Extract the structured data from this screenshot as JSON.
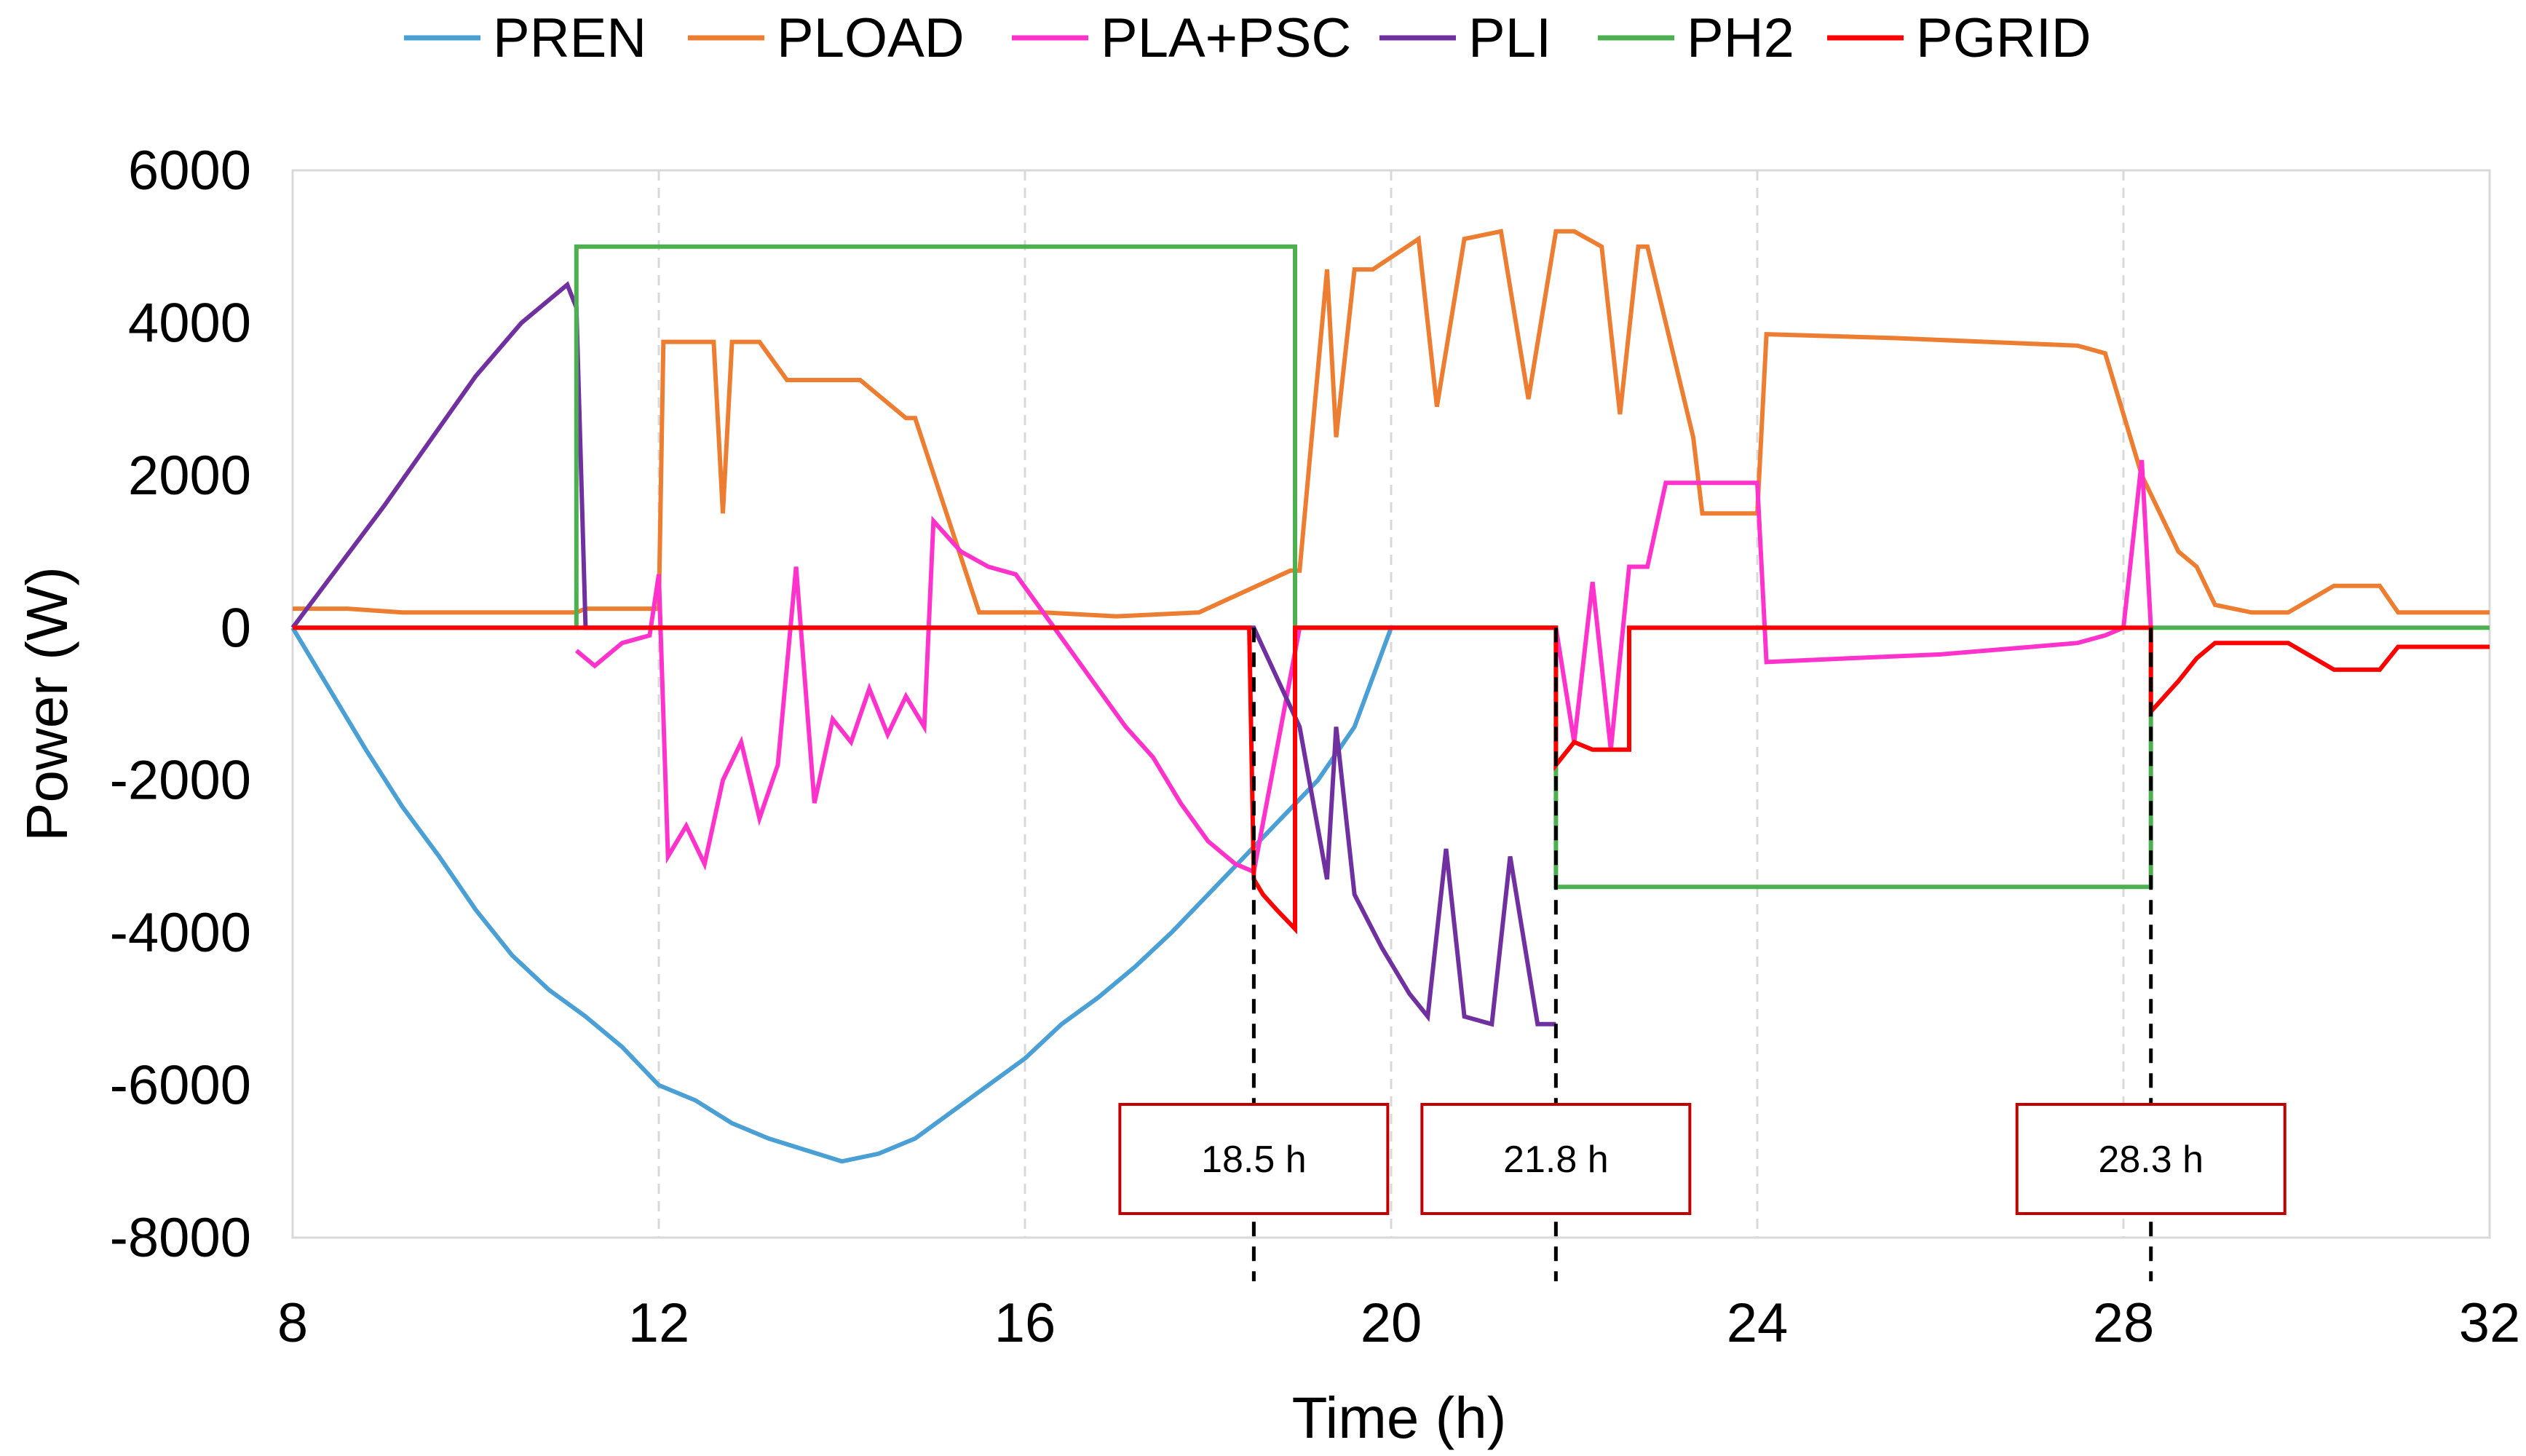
{
  "chart_data": {
    "type": "line",
    "xlabel": "Time (h)",
    "ylabel": "Power (W)",
    "xlim": [
      8,
      32
    ],
    "ylim": [
      -8000,
      6000
    ],
    "xticks": [
      8,
      12,
      16,
      20,
      24,
      28,
      32
    ],
    "yticks": [
      6000,
      4000,
      2000,
      0,
      -2000,
      -4000,
      -6000,
      -8000
    ],
    "tick_labels_x": [
      "8",
      "12",
      "16",
      "20",
      "24",
      "28",
      "32"
    ],
    "tick_labels_y": [
      "6000",
      "4000",
      "2000",
      "0",
      "-2000",
      "-4000",
      "-6000",
      "-8000"
    ],
    "grid": "vertical dashed",
    "legend_position": "top",
    "series": [
      {
        "name": "PREN",
        "color": "#4a9fd5",
        "x": [
          8,
          8.4,
          8.8,
          9.2,
          9.6,
          10,
          10.4,
          10.8,
          11.2,
          11.6,
          12,
          12.4,
          12.8,
          13.2,
          13.6,
          14,
          14.4,
          14.8,
          15.2,
          15.6,
          16,
          16.4,
          16.8,
          17.2,
          17.6,
          18,
          18.4,
          18.8,
          19.2,
          19.6,
          20
        ],
        "y": [
          0,
          -800,
          -1600,
          -2350,
          -3000,
          -3700,
          -4300,
          -4750,
          -5100,
          -5500,
          -6000,
          -6200,
          -6500,
          -6700,
          -6850,
          -7000,
          -6900,
          -6700,
          -6350,
          -6000,
          -5650,
          -5200,
          -4850,
          -4450,
          -4000,
          -3500,
          -3000,
          -2500,
          -2000,
          -1300,
          0
        ]
      },
      {
        "name": "PLOAD",
        "color": "#ed7d31",
        "x": [
          8,
          8.6,
          9.2,
          11.1,
          11.2,
          12,
          12.05,
          12.6,
          12.7,
          12.8,
          13.1,
          13.4,
          13.8,
          14.2,
          14.7,
          14.8,
          15.5,
          16.2,
          17,
          17.9,
          18.9,
          19,
          19.3,
          19.4,
          19.6,
          19.8,
          20.3,
          20.5,
          20.8,
          21.2,
          21.5,
          21.8,
          22,
          22.3,
          22.5,
          22.7,
          22.8,
          23.3,
          23.4,
          24,
          24.1,
          25.5,
          26.5,
          27.5,
          27.8,
          28.2,
          28.6,
          28.8,
          29,
          29.4,
          29.8,
          30.3,
          30.8,
          31,
          32
        ],
        "y": [
          250,
          250,
          200,
          200,
          250,
          250,
          3750,
          3750,
          1500,
          3750,
          3750,
          3250,
          3250,
          3250,
          2750,
          2750,
          200,
          200,
          150,
          200,
          750,
          750,
          4700,
          2500,
          4700,
          4700,
          5100,
          2900,
          5100,
          5200,
          3000,
          5200,
          5200,
          5000,
          2800,
          5000,
          5000,
          2500,
          1500,
          1500,
          3850,
          3800,
          3750,
          3700,
          3600,
          2000,
          1000,
          800,
          300,
          200,
          200,
          550,
          550,
          200,
          200
        ]
      },
      {
        "name": "PLA+PSC",
        "color": "#ff33cc",
        "x": [
          11.1,
          11.3,
          11.6,
          11.9,
          12,
          12.1,
          12.3,
          12.5,
          12.7,
          12.9,
          13.1,
          13.3,
          13.5,
          13.7,
          13.9,
          14.1,
          14.3,
          14.5,
          14.7,
          14.9,
          15,
          15.3,
          15.6,
          15.9,
          16.2,
          16.5,
          16.8,
          17.1,
          17.4,
          17.7,
          18,
          18.3,
          18.5,
          19,
          19.5,
          20,
          20.5,
          21,
          21.5,
          21.8,
          22,
          22.2,
          22.4,
          22.6,
          22.8,
          23,
          23.3,
          24,
          24.1,
          25,
          26,
          27,
          27.5,
          27.8,
          28,
          28.2,
          28.3
        ],
        "y": [
          -300,
          -500,
          -200,
          -100,
          700,
          -3000,
          -2600,
          -3100,
          -2000,
          -1500,
          -2500,
          -1800,
          800,
          -2300,
          -1200,
          -1500,
          -800,
          -1400,
          -900,
          -1300,
          1400,
          1000,
          800,
          700,
          200,
          -300,
          -800,
          -1300,
          -1700,
          -2300,
          -2800,
          -3100,
          -3200,
          0,
          0,
          0,
          0,
          0,
          0,
          0,
          -1500,
          600,
          -1600,
          800,
          800,
          1900,
          1900,
          1900,
          -450,
          -400,
          -350,
          -250,
          -200,
          -100,
          0,
          2200,
          0
        ]
      },
      {
        "name": "PLI",
        "color": "#7030a0",
        "x": [
          8,
          8.5,
          9,
          9.5,
          10,
          10.5,
          11,
          11.1,
          11.2,
          18.5,
          19,
          19.3,
          19.4,
          19.6,
          19.9,
          20.2,
          20.4,
          20.6,
          20.8,
          21.1,
          21.3,
          21.6,
          21.8
        ],
        "y": [
          0,
          800,
          1600,
          2450,
          3300,
          4000,
          4500,
          4200,
          0,
          0,
          -1300,
          -3300,
          -1300,
          -3500,
          -4200,
          -4800,
          -5100,
          -2900,
          -5100,
          -5200,
          -3000,
          -5200,
          -5200
        ]
      },
      {
        "name": "PH2",
        "color": "#4caf50",
        "x": [
          8,
          11.1,
          11.1,
          18.95,
          18.95,
          21.8,
          21.8,
          28.3,
          28.3,
          32
        ],
        "y": [
          0,
          0,
          5000,
          5000,
          0,
          0,
          -3400,
          -3400,
          0,
          0
        ]
      },
      {
        "name": "PGRID",
        "color": "#ff0000",
        "x": [
          8,
          18.45,
          18.5,
          18.6,
          18.75,
          18.95,
          18.95,
          21.8,
          21.8,
          22,
          22.2,
          22.6,
          22.6,
          28.3,
          28.3,
          28.6,
          28.8,
          29,
          29.4,
          29.8,
          30.3,
          30.8,
          31,
          32
        ],
        "y": [
          0,
          0,
          -3300,
          -3500,
          -3700,
          -3950,
          0,
          0,
          -1800,
          -1500,
          -1600,
          -1600,
          0,
          0,
          -1100,
          -700,
          -400,
          -200,
          -200,
          -200,
          -550,
          -550,
          -250,
          -250
        ]
      }
    ],
    "annotations": [
      {
        "label": "18.5 h",
        "x": 18.5
      },
      {
        "label": "21.8 h",
        "x": 21.8
      },
      {
        "label": "28.3 h",
        "x": 28.3
      }
    ]
  }
}
